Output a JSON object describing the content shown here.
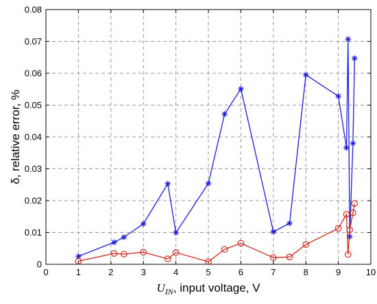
{
  "chart_data": {
    "type": "line",
    "title": "",
    "xlabel": {
      "symbol": "U",
      "subscript": "IN",
      "text": ", input voltage, V"
    },
    "ylabel": "δ, relative error, %",
    "xlim": [
      0,
      10
    ],
    "ylim": [
      0,
      0.08
    ],
    "xticks": [
      0,
      1,
      2,
      3,
      4,
      5,
      6,
      7,
      8,
      9,
      10
    ],
    "yticks": [
      0,
      0.01,
      0.02,
      0.03,
      0.04,
      0.05,
      0.06,
      0.07,
      0.08
    ],
    "ytick_labels": [
      "0",
      "0.01",
      "0.02",
      "0.03",
      "0.04",
      "0.05",
      "0.06",
      "0.07",
      "0.08"
    ],
    "grid": true,
    "legend": "none",
    "series": [
      {
        "color": "#1a1adb",
        "marker": "asterisk",
        "points": [
          [
            1.0,
            0.0025
          ],
          [
            2.1,
            0.0069
          ],
          [
            2.4,
            0.0085
          ],
          [
            3.0,
            0.0127
          ],
          [
            3.75,
            0.0253
          ],
          [
            4.0,
            0.0099
          ],
          [
            5.0,
            0.0254
          ],
          [
            5.5,
            0.0472
          ],
          [
            6.0,
            0.0551
          ],
          [
            7.0,
            0.0102
          ],
          [
            7.5,
            0.0129
          ],
          [
            8.0,
            0.0595
          ],
          [
            9.0,
            0.0528
          ],
          [
            9.25,
            0.0366
          ],
          [
            9.3,
            0.0707
          ],
          [
            9.35,
            0.0087
          ],
          [
            9.45,
            0.038
          ],
          [
            9.5,
            0.0647
          ]
        ]
      },
      {
        "color": "#d0291f",
        "marker": "circle",
        "points": [
          [
            1.0,
            0.001
          ],
          [
            2.1,
            0.0034
          ],
          [
            2.4,
            0.0032
          ],
          [
            3.0,
            0.0038
          ],
          [
            3.75,
            0.0017
          ],
          [
            4.0,
            0.0037
          ],
          [
            5.0,
            0.0008
          ],
          [
            5.5,
            0.0047
          ],
          [
            6.0,
            0.0066
          ],
          [
            7.0,
            0.0021
          ],
          [
            7.5,
            0.0023
          ],
          [
            8.0,
            0.0062
          ],
          [
            9.0,
            0.0113
          ],
          [
            9.25,
            0.0157
          ],
          [
            9.3,
            0.0031
          ],
          [
            9.35,
            0.0108
          ],
          [
            9.45,
            0.0162
          ],
          [
            9.5,
            0.0191
          ]
        ]
      }
    ]
  }
}
